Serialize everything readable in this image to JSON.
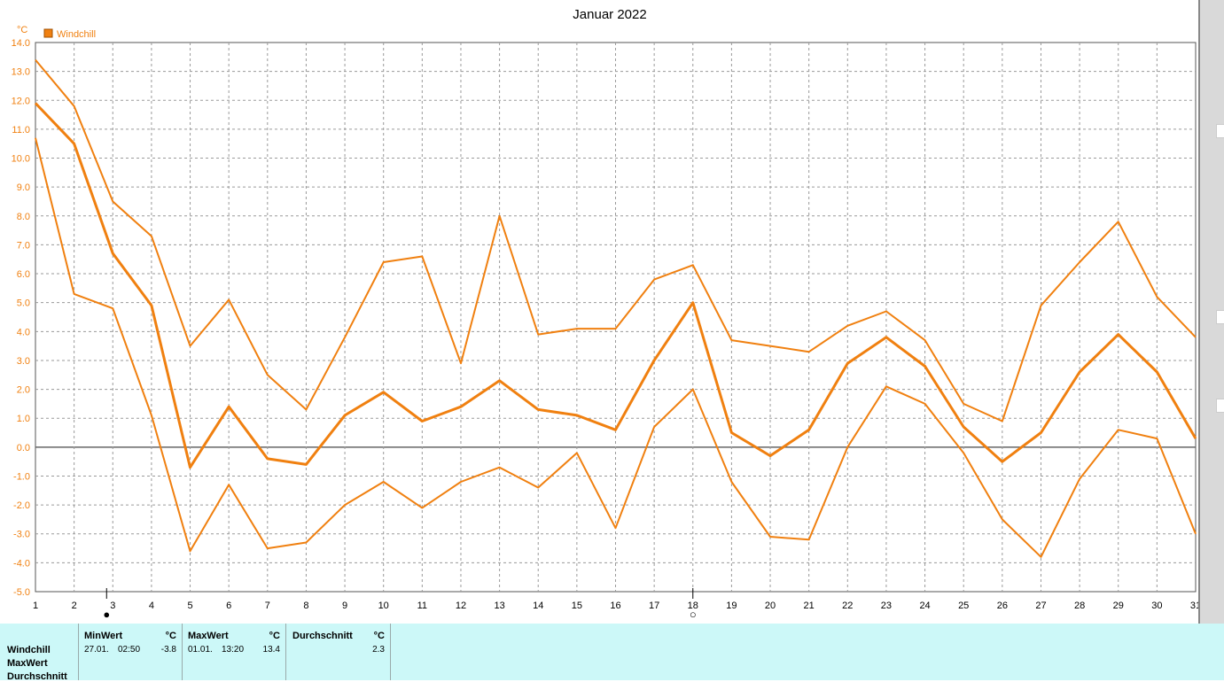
{
  "chart_data": {
    "type": "line",
    "title": "Januar 2022",
    "y_unit": "°C",
    "legend": "Windchill",
    "x": [
      1,
      2,
      3,
      4,
      5,
      6,
      7,
      8,
      9,
      10,
      11,
      12,
      13,
      14,
      15,
      16,
      17,
      18,
      19,
      20,
      21,
      22,
      23,
      24,
      25,
      26,
      27,
      28,
      29,
      30,
      31
    ],
    "ylim": [
      -5.0,
      14.0
    ],
    "yticks": [
      "14.0",
      "13.0",
      "12.0",
      "11.0",
      "10.0",
      "9.0",
      "8.0",
      "7.0",
      "6.0",
      "5.0",
      "4.0",
      "3.0",
      "2.0",
      "1.0",
      "0.0",
      "-1.0",
      "-2.0",
      "-3.0",
      "-4.0",
      "-5.0"
    ],
    "grid": true,
    "color": "#f08010",
    "series": [
      {
        "values": [
          13.4,
          11.8,
          8.5,
          7.3,
          3.5,
          5.1,
          2.5,
          1.3,
          3.8,
          6.4,
          6.6,
          2.9,
          8.0,
          3.9,
          4.1,
          4.1,
          5.8,
          6.3,
          3.7,
          3.5,
          3.3,
          4.2,
          4.7,
          3.7,
          1.5,
          0.9,
          4.9,
          6.4,
          7.8,
          5.2,
          3.8
        ]
      },
      {
        "values": [
          11.9,
          10.5,
          6.7,
          4.9,
          -0.7,
          1.4,
          -0.4,
          -0.6,
          1.1,
          1.9,
          0.9,
          1.4,
          2.3,
          1.3,
          1.1,
          0.6,
          3.0,
          5.0,
          0.5,
          -0.3,
          0.6,
          2.9,
          3.8,
          2.8,
          0.7,
          -0.5,
          0.5,
          2.6,
          3.9,
          2.6,
          0.3
        ]
      },
      {
        "values": [
          10.7,
          5.3,
          4.8,
          1.1,
          -3.6,
          -1.3,
          -3.5,
          -3.3,
          -2.0,
          -1.2,
          -2.1,
          -1.2,
          -0.7,
          -1.4,
          -0.2,
          -2.8,
          0.7,
          2.0,
          -1.2,
          -3.1,
          -3.2,
          0.0,
          2.1,
          1.5,
          -0.2,
          -2.5,
          -3.8,
          -1.1,
          0.6,
          0.3,
          -3.0
        ]
      }
    ],
    "moon_markers": [
      {
        "day": 3,
        "symbol": "●"
      },
      {
        "day": 18,
        "symbol": "○"
      }
    ]
  },
  "stats": {
    "row_labels": [
      "Windchill",
      "MaxWert",
      "Durchschnitt"
    ],
    "columns": [
      {
        "header": "MinWert",
        "unit": "°C",
        "date": "27.01.",
        "time": "02:50",
        "value": "-3.8"
      },
      {
        "header": "MaxWert",
        "unit": "°C",
        "date": "01.01.",
        "time": "13:20",
        "value": "13.4"
      },
      {
        "header": "Durchschnitt",
        "unit": "°C",
        "value": "2.3"
      }
    ]
  }
}
